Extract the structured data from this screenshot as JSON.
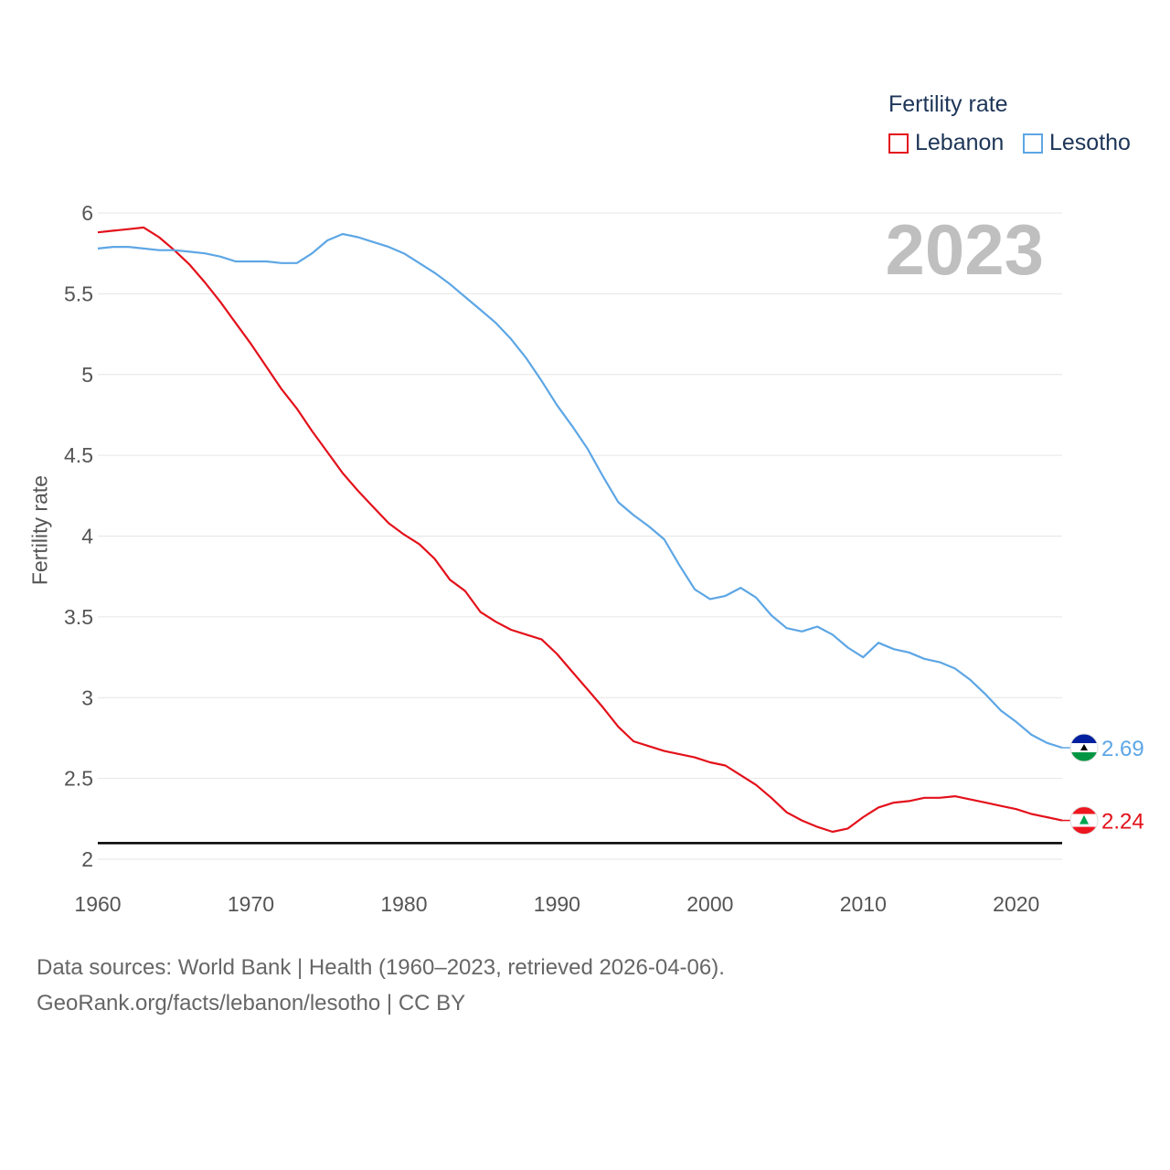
{
  "legend": {
    "title": "Fertility rate",
    "items": [
      {
        "name": "Lebanon",
        "color": "#e3111b"
      },
      {
        "name": "Lesotho",
        "color": "#5da6e5"
      }
    ]
  },
  "year_label": "2023",
  "source": {
    "line1": "Data sources: World Bank | Health (1960–2023, retrieved 2026-04-06).",
    "line2": "GeoRank.org/facts/lebanon/lesotho | CC BY"
  },
  "chart_data": {
    "type": "line",
    "title": "",
    "xlabel": "",
    "ylabel": "Fertility rate",
    "xlim": [
      1960,
      2023
    ],
    "ylim": [
      2,
      6
    ],
    "x_ticks": [
      1960,
      1970,
      1980,
      1990,
      2000,
      2010,
      2020
    ],
    "y_ticks": [
      {
        "value": 2,
        "label": "2"
      },
      {
        "value": 2.5,
        "label": "2.5"
      },
      {
        "value": 3,
        "label": "3"
      },
      {
        "value": 3.5,
        "label": "3.5"
      },
      {
        "value": 4,
        "label": "4"
      },
      {
        "value": 4.5,
        "label": "4.5"
      },
      {
        "value": 5,
        "label": "5"
      },
      {
        "value": 5.5,
        "label": "5.5"
      },
      {
        "value": 6,
        "label": "6"
      }
    ],
    "grid": true,
    "reference_line": 2.1,
    "x": [
      1960,
      1961,
      1962,
      1963,
      1964,
      1965,
      1966,
      1967,
      1968,
      1969,
      1970,
      1971,
      1972,
      1973,
      1974,
      1975,
      1976,
      1977,
      1978,
      1979,
      1980,
      1981,
      1982,
      1983,
      1984,
      1985,
      1986,
      1987,
      1988,
      1989,
      1990,
      1991,
      1992,
      1993,
      1994,
      1995,
      1996,
      1997,
      1998,
      1999,
      2000,
      2001,
      2002,
      2003,
      2004,
      2005,
      2006,
      2007,
      2008,
      2009,
      2010,
      2011,
      2012,
      2013,
      2014,
      2015,
      2016,
      2017,
      2018,
      2019,
      2020,
      2021,
      2022,
      2023
    ],
    "series": [
      {
        "name": "Lebanon",
        "color": "#e3111b",
        "end_label": "2.24",
        "values": [
          5.88,
          5.89,
          5.9,
          5.91,
          5.85,
          5.77,
          5.68,
          5.57,
          5.45,
          5.32,
          5.19,
          5.05,
          4.91,
          4.79,
          4.65,
          4.52,
          4.39,
          4.28,
          4.18,
          4.08,
          4.01,
          3.95,
          3.86,
          3.73,
          3.66,
          3.53,
          3.47,
          3.42,
          3.39,
          3.36,
          3.27,
          3.16,
          3.05,
          2.94,
          2.82,
          2.73,
          2.7,
          2.67,
          2.65,
          2.63,
          2.6,
          2.58,
          2.52,
          2.46,
          2.38,
          2.29,
          2.24,
          2.2,
          2.17,
          2.19,
          2.26,
          2.32,
          2.35,
          2.36,
          2.38,
          2.38,
          2.39,
          2.37,
          2.35,
          2.33,
          2.31,
          2.28,
          2.26,
          2.24
        ]
      },
      {
        "name": "Lesotho",
        "color": "#5da6e5",
        "end_label": "2.69",
        "values": [
          5.78,
          5.79,
          5.79,
          5.78,
          5.77,
          5.77,
          5.76,
          5.75,
          5.73,
          5.7,
          5.7,
          5.7,
          5.69,
          5.69,
          5.75,
          5.83,
          5.87,
          5.85,
          5.82,
          5.79,
          5.75,
          5.69,
          5.63,
          5.56,
          5.48,
          5.4,
          5.32,
          5.22,
          5.1,
          4.96,
          4.81,
          4.68,
          4.54,
          4.37,
          4.21,
          4.13,
          4.06,
          3.98,
          3.82,
          3.67,
          3.61,
          3.63,
          3.68,
          3.62,
          3.51,
          3.43,
          3.41,
          3.44,
          3.39,
          3.31,
          3.25,
          3.34,
          3.3,
          3.28,
          3.24,
          3.22,
          3.18,
          3.11,
          3.02,
          2.92,
          2.85,
          2.77,
          2.72,
          2.69
        ]
      }
    ]
  }
}
